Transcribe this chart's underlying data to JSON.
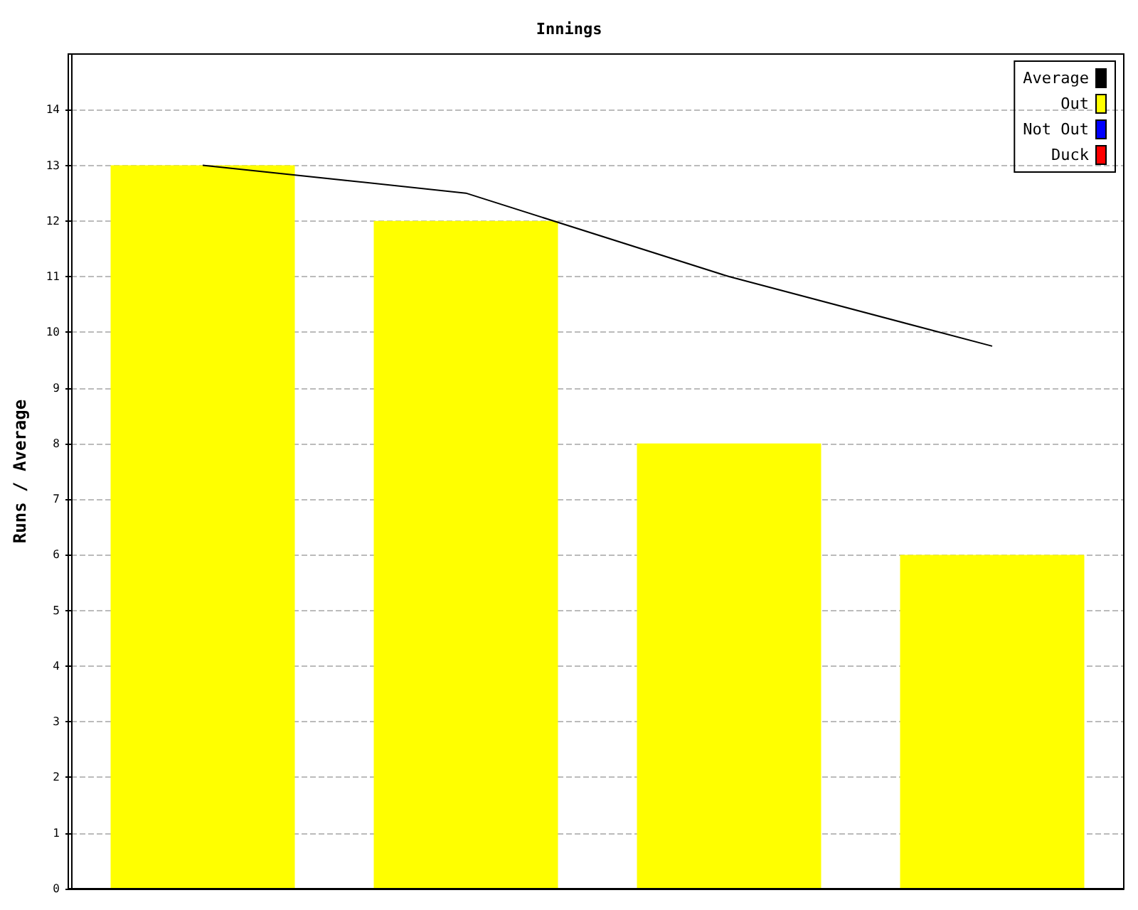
{
  "chart_data": {
    "type": "bar",
    "title": "Innings",
    "ylabel": "Runs / Average",
    "categories": [
      null,
      null,
      null,
      null
    ],
    "series": [
      {
        "name": "Average",
        "type": "line",
        "color": "#000000",
        "values": [
          13,
          12.5,
          11,
          9.75
        ]
      },
      {
        "name": "Out",
        "color": "#ffff00",
        "values": [
          13,
          12,
          8,
          6
        ]
      },
      {
        "name": "Not Out",
        "color": "#0000ff",
        "values": [
          null,
          null,
          null,
          null
        ]
      },
      {
        "name": "Duck",
        "color": "#ff0000",
        "values": [
          null,
          null,
          null,
          null
        ]
      }
    ],
    "stacked": true,
    "ylim": [
      0,
      15
    ],
    "yticks": [
      0,
      1,
      2,
      3,
      4,
      5,
      6,
      7,
      8,
      9,
      10,
      11,
      12,
      13,
      14
    ],
    "grid": "y",
    "legend": "top right",
    "marker": "none",
    "line_style": "solid",
    "tick_labels": "y"
  }
}
